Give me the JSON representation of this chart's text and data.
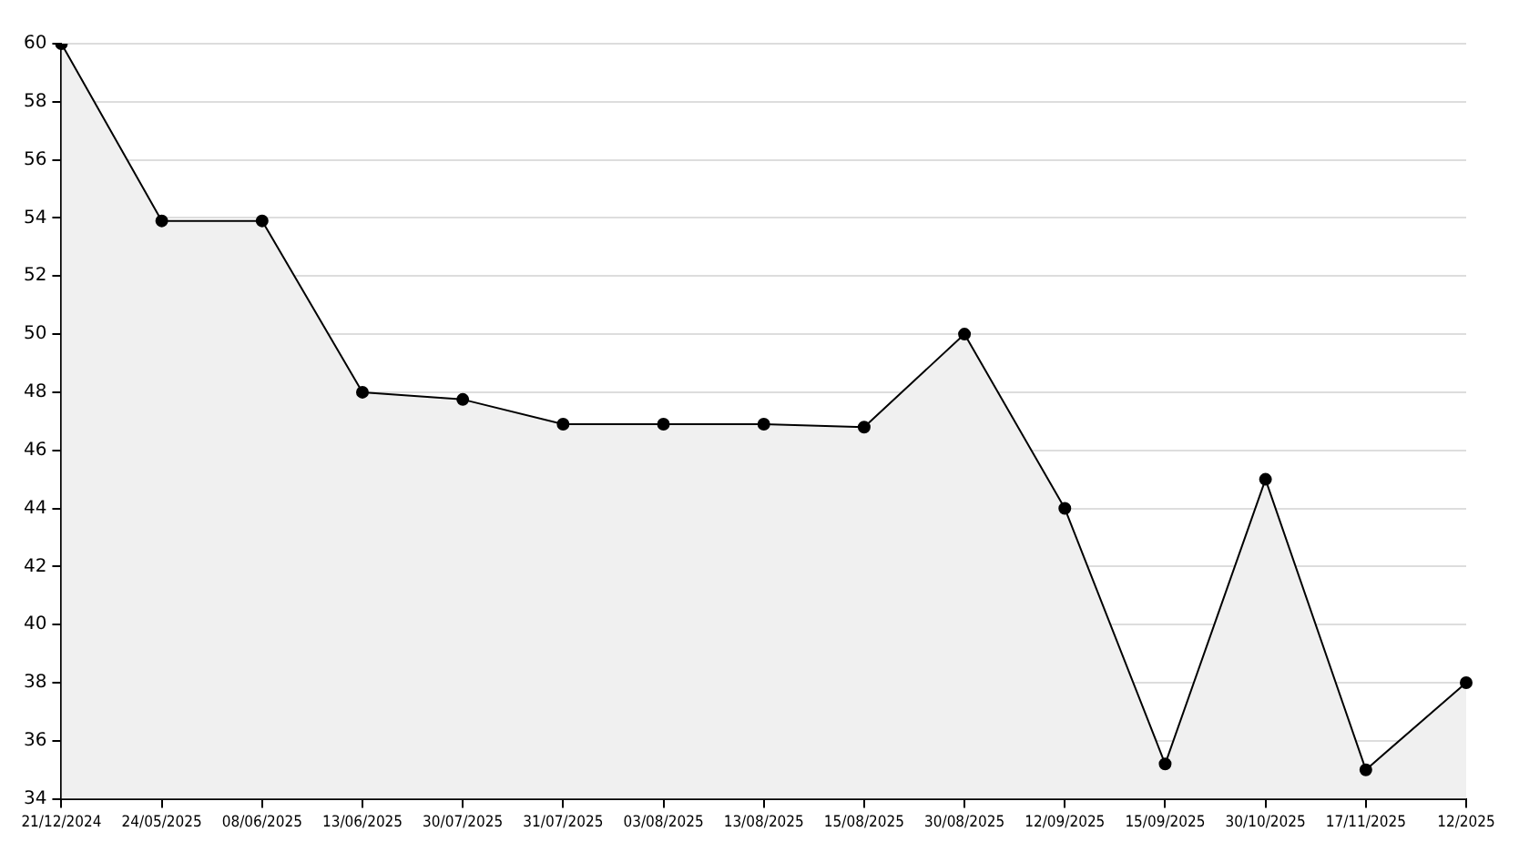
{
  "chart_data": {
    "type": "area",
    "categories": [
      "21/12/2024",
      "24/05/2025",
      "08/06/2025",
      "13/06/2025",
      "30/07/2025",
      "31/07/2025",
      "03/08/2025",
      "13/08/2025",
      "15/08/2025",
      "30/08/2025",
      "12/09/2025",
      "15/09/2025",
      "30/10/2025",
      "17/11/2025",
      "12/2025"
    ],
    "series": [
      {
        "color": "#000000",
        "values": [
          60,
          53.9,
          53.9,
          48,
          47.75,
          46.9,
          46.9,
          46.9,
          46.8,
          50,
          44,
          35.2,
          45,
          35,
          38
        ]
      }
    ],
    "ylim": [
      34,
      60
    ],
    "yticks": [
      34,
      36,
      38,
      40,
      42,
      44,
      46,
      48,
      50,
      52,
      54,
      56,
      58,
      60
    ],
    "grid": "y",
    "marker": "circle",
    "line_style": "solid"
  }
}
